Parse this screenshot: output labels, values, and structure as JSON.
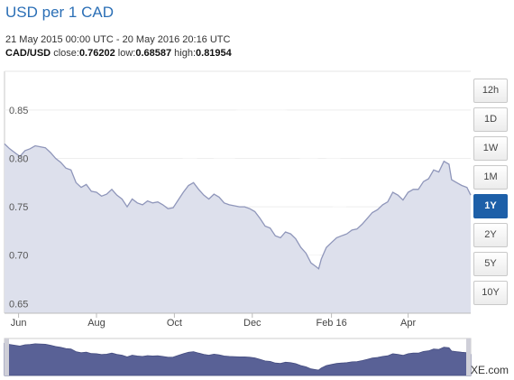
{
  "header": {
    "title": "USD per 1 CAD",
    "date_range": "21 May 2015 00:00 UTC - 20 May 2016 20:16 UTC",
    "pair": "CAD/USD",
    "close_label": "close:",
    "close_value": "0.76202",
    "low_label": "low:",
    "low_value": "0.68587",
    "high_label": "high:",
    "high_value": "0.81954"
  },
  "periods": [
    "12h",
    "1D",
    "1W",
    "1M",
    "1Y",
    "2Y",
    "5Y",
    "10Y"
  ],
  "active_period": "1Y",
  "brand": "XE.com",
  "colors": {
    "line": "#8f96ba",
    "fill": "#dde0ec",
    "navigator_fill": "#596196",
    "active": "#1d5fa8",
    "title": "#2b6fb6"
  },
  "chart_data": {
    "type": "area",
    "x_axis_type": "date",
    "x_ticks": [
      {
        "label": "Jun",
        "date": "2015-06-01"
      },
      {
        "label": "Aug",
        "date": "2015-08-01"
      },
      {
        "label": "Oct",
        "date": "2015-10-01"
      },
      {
        "label": "Dec",
        "date": "2015-12-01"
      },
      {
        "label": "Feb 16",
        "date": "2016-02-01"
      },
      {
        "label": "Apr",
        "date": "2016-04-01"
      }
    ],
    "xlim": [
      "2015-05-21",
      "2016-05-20"
    ],
    "y_ticks": [
      0.65,
      0.7,
      0.75,
      0.8,
      0.85
    ],
    "ylim": [
      0.64,
      0.89
    ],
    "grid": "horizontal",
    "series": [
      {
        "points": [
          [
            "2015-05-21",
            0.815
          ],
          [
            "2015-05-25",
            0.81
          ],
          [
            "2015-05-29",
            0.806
          ],
          [
            "2015-06-02",
            0.802
          ],
          [
            "2015-06-06",
            0.808
          ],
          [
            "2015-06-10",
            0.81
          ],
          [
            "2015-06-14",
            0.813
          ],
          [
            "2015-06-18",
            0.812
          ],
          [
            "2015-06-22",
            0.811
          ],
          [
            "2015-06-26",
            0.806
          ],
          [
            "2015-06-30",
            0.8
          ],
          [
            "2015-07-04",
            0.796
          ],
          [
            "2015-07-08",
            0.79
          ],
          [
            "2015-07-12",
            0.788
          ],
          [
            "2015-07-16",
            0.775
          ],
          [
            "2015-07-20",
            0.77
          ],
          [
            "2015-07-24",
            0.773
          ],
          [
            "2015-07-28",
            0.766
          ],
          [
            "2015-08-01",
            0.765
          ],
          [
            "2015-08-05",
            0.761
          ],
          [
            "2015-08-09",
            0.763
          ],
          [
            "2015-08-13",
            0.768
          ],
          [
            "2015-08-17",
            0.762
          ],
          [
            "2015-08-21",
            0.758
          ],
          [
            "2015-08-25",
            0.75
          ],
          [
            "2015-08-29",
            0.758
          ],
          [
            "2015-09-02",
            0.754
          ],
          [
            "2015-09-06",
            0.752
          ],
          [
            "2015-09-10",
            0.756
          ],
          [
            "2015-09-14",
            0.754
          ],
          [
            "2015-09-18",
            0.755
          ],
          [
            "2015-09-22",
            0.752
          ],
          [
            "2015-09-26",
            0.748
          ],
          [
            "2015-09-30",
            0.749
          ],
          [
            "2015-10-04",
            0.757
          ],
          [
            "2015-10-08",
            0.765
          ],
          [
            "2015-10-12",
            0.772
          ],
          [
            "2015-10-16",
            0.775
          ],
          [
            "2015-10-20",
            0.768
          ],
          [
            "2015-10-24",
            0.762
          ],
          [
            "2015-10-28",
            0.758
          ],
          [
            "2015-11-01",
            0.763
          ],
          [
            "2015-11-05",
            0.76
          ],
          [
            "2015-11-09",
            0.754
          ],
          [
            "2015-11-13",
            0.752
          ],
          [
            "2015-11-17",
            0.751
          ],
          [
            "2015-11-21",
            0.75
          ],
          [
            "2015-11-25",
            0.75
          ],
          [
            "2015-11-29",
            0.748
          ],
          [
            "2015-12-03",
            0.745
          ],
          [
            "2015-12-07",
            0.738
          ],
          [
            "2015-12-11",
            0.73
          ],
          [
            "2015-12-15",
            0.728
          ],
          [
            "2015-12-19",
            0.72
          ],
          [
            "2015-12-23",
            0.718
          ],
          [
            "2015-12-27",
            0.724
          ],
          [
            "2015-12-31",
            0.722
          ],
          [
            "2016-01-04",
            0.717
          ],
          [
            "2016-01-08",
            0.708
          ],
          [
            "2016-01-12",
            0.702
          ],
          [
            "2016-01-16",
            0.692
          ],
          [
            "2016-01-20",
            0.688
          ],
          [
            "2016-01-22",
            0.686
          ],
          [
            "2016-01-24",
            0.696
          ],
          [
            "2016-01-26",
            0.702
          ],
          [
            "2016-01-28",
            0.708
          ],
          [
            "2016-02-01",
            0.713
          ],
          [
            "2016-02-05",
            0.718
          ],
          [
            "2016-02-09",
            0.72
          ],
          [
            "2016-02-13",
            0.722
          ],
          [
            "2016-02-17",
            0.726
          ],
          [
            "2016-02-21",
            0.727
          ],
          [
            "2016-02-25",
            0.732
          ],
          [
            "2016-02-29",
            0.738
          ],
          [
            "2016-03-04",
            0.744
          ],
          [
            "2016-03-08",
            0.747
          ],
          [
            "2016-03-12",
            0.752
          ],
          [
            "2016-03-16",
            0.755
          ],
          [
            "2016-03-20",
            0.765
          ],
          [
            "2016-03-24",
            0.762
          ],
          [
            "2016-03-28",
            0.757
          ],
          [
            "2016-04-01",
            0.765
          ],
          [
            "2016-04-05",
            0.768
          ],
          [
            "2016-04-09",
            0.768
          ],
          [
            "2016-04-13",
            0.776
          ],
          [
            "2016-04-17",
            0.779
          ],
          [
            "2016-04-21",
            0.788
          ],
          [
            "2016-04-25",
            0.786
          ],
          [
            "2016-04-29",
            0.797
          ],
          [
            "2016-05-03",
            0.794
          ],
          [
            "2016-05-05",
            0.778
          ],
          [
            "2016-05-09",
            0.775
          ],
          [
            "2016-05-13",
            0.772
          ],
          [
            "2016-05-17",
            0.77
          ],
          [
            "2016-05-20",
            0.762
          ]
        ]
      }
    ]
  }
}
